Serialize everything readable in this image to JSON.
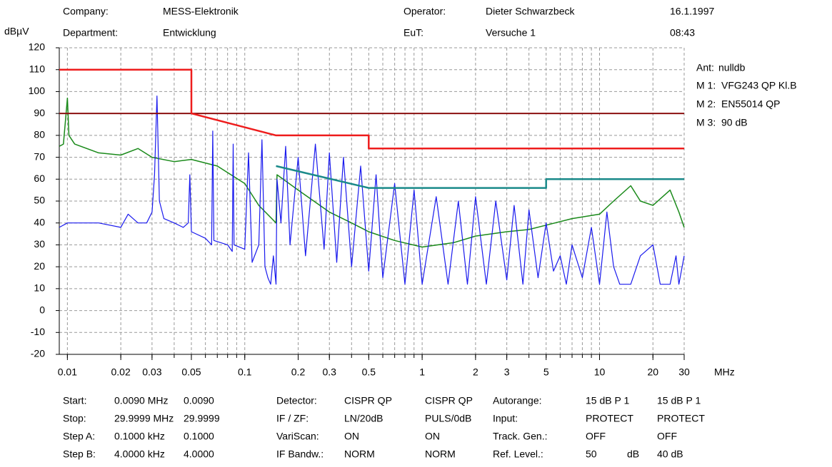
{
  "header": {
    "company_label": "Company:",
    "company": "MESS-Elektronik",
    "operator_label": "Operator:",
    "operator": "Dieter Schwarzbeck",
    "date": "16.1.1997",
    "department_label": "Department:",
    "department": "Entwicklung",
    "eut_label": "EuT:",
    "eut": "Versuche 1",
    "time": "08:43"
  },
  "chart_data": {
    "type": "line",
    "y_label": "dBµV",
    "x_label": "MHz",
    "log_x": true,
    "grid": true,
    "xlim": [
      0.009,
      30
    ],
    "ylim": [
      -20,
      120
    ],
    "xticks": [
      0.01,
      0.02,
      0.03,
      0.05,
      0.1,
      0.2,
      0.3,
      0.5,
      1,
      2,
      3,
      5,
      10,
      20,
      30
    ],
    "xminorticks": [
      0.01,
      0.02,
      0.03,
      0.04,
      0.05,
      0.06,
      0.07,
      0.08,
      0.09,
      0.1,
      0.2,
      0.3,
      0.4,
      0.5,
      0.6,
      0.7,
      0.8,
      0.9,
      1,
      2,
      3,
      4,
      5,
      6,
      7,
      8,
      9,
      10,
      20,
      30
    ],
    "yticks": [
      -20,
      -10,
      0,
      10,
      20,
      30,
      40,
      50,
      60,
      70,
      80,
      90,
      100,
      110,
      120
    ],
    "antenna": {
      "label": "Ant:",
      "value": "nulldb",
      "color": "#8b1a9b"
    },
    "series": [
      {
        "label": "M 3:",
        "name": "90 dB",
        "color": "#8b1010",
        "width": 2,
        "x": [
          0.009,
          30
        ],
        "values": [
          90,
          90
        ]
      },
      {
        "label": "M 1:",
        "name": "VFG243 QP Kl.B",
        "color": "#ee1c1c",
        "width": 2.5,
        "x": [
          0.009,
          0.05,
          0.05,
          0.15,
          0.5,
          0.5,
          30
        ],
        "values": [
          110,
          110,
          90,
          80,
          80,
          74,
          74
        ]
      },
      {
        "label": "M 2:",
        "name": "EN55014 QP",
        "color": "#1a8a8a",
        "width": 2.5,
        "x": [
          0.15,
          0.5,
          5,
          5,
          30
        ],
        "values": [
          66,
          56,
          56,
          60,
          60
        ]
      },
      {
        "color": "#1a8a1a",
        "width": 1.5,
        "x": [
          0.009,
          0.0095,
          0.01,
          0.0102,
          0.011,
          0.015,
          0.02,
          0.025,
          0.03,
          0.04,
          0.05,
          0.07,
          0.1,
          0.12,
          0.15,
          0.152,
          0.2,
          0.3,
          0.4,
          0.5,
          0.7,
          1,
          1.5,
          2,
          3,
          4,
          5,
          7,
          10,
          12,
          15,
          17,
          20,
          25,
          28,
          30
        ],
        "values": [
          75,
          76,
          97,
          80,
          76,
          72,
          71,
          74,
          70,
          68,
          69,
          66,
          58,
          48,
          40,
          62,
          55,
          45,
          40,
          36,
          32,
          29,
          31,
          34,
          36,
          37,
          39,
          42,
          44,
          50,
          57,
          50,
          48,
          55,
          45,
          38
        ]
      },
      {
        "color": "#1a1aee",
        "width": 1.2,
        "x": [
          0.009,
          0.01,
          0.015,
          0.02,
          0.022,
          0.025,
          0.028,
          0.03,
          0.031,
          0.032,
          0.033,
          0.035,
          0.04,
          0.045,
          0.048,
          0.049,
          0.05,
          0.06,
          0.065,
          0.066,
          0.067,
          0.08,
          0.085,
          0.086,
          0.087,
          0.1,
          0.105,
          0.11,
          0.12,
          0.125,
          0.13,
          0.135,
          0.14,
          0.145,
          0.15,
          0.152,
          0.16,
          0.17,
          0.18,
          0.2,
          0.22,
          0.25,
          0.28,
          0.3,
          0.33,
          0.36,
          0.4,
          0.45,
          0.5,
          0.55,
          0.6,
          0.7,
          0.8,
          0.9,
          1,
          1.2,
          1.4,
          1.6,
          1.8,
          2,
          2.3,
          2.6,
          3,
          3.3,
          3.7,
          4,
          4.5,
          5,
          5.5,
          6,
          6.5,
          7,
          8,
          9,
          10,
          11,
          12,
          13,
          15,
          17,
          20,
          22,
          25,
          27,
          28,
          30
        ],
        "values": [
          38,
          40,
          40,
          38,
          44,
          40,
          40,
          45,
          62,
          98,
          50,
          42,
          40,
          38,
          40,
          62,
          36,
          33,
          30,
          82,
          32,
          30,
          27,
          76,
          30,
          28,
          72,
          22,
          30,
          78,
          20,
          15,
          12,
          25,
          12,
          60,
          40,
          75,
          30,
          70,
          25,
          76,
          28,
          72,
          22,
          70,
          20,
          66,
          18,
          62,
          15,
          58,
          12,
          55,
          12,
          52,
          12,
          50,
          12,
          52,
          12,
          50,
          14,
          48,
          12,
          46,
          15,
          40,
          18,
          25,
          12,
          30,
          15,
          38,
          12,
          45,
          20,
          12,
          12,
          25,
          30,
          12,
          12,
          25,
          12,
          25
        ]
      }
    ]
  },
  "settings": {
    "rows": [
      {
        "cells": [
          "Start:",
          "0.0090 MHz",
          "0.0090",
          "Detector:",
          "CISPR QP",
          "CISPR QP",
          "Autorange:",
          "15 dB P 1",
          "15 dB P 1"
        ],
        "colors": [
          "#000",
          "#1a1aee",
          "#1a8a1a",
          "#000",
          "#1a1aee",
          "#1a8a1a",
          "#000",
          "#1a1aee",
          "#1a8a1a"
        ]
      },
      {
        "cells": [
          "Stop:",
          "29.9999 MHz",
          "29.9999",
          "IF / ZF:",
          "LN/20dB",
          "PULS/0dB",
          "Input:",
          "PROTECT",
          "PROTECT"
        ],
        "colors": [
          "#000",
          "#1a1aee",
          "#1a8a1a",
          "#000",
          "#1a1aee",
          "#1a8a1a",
          "#000",
          "#1a1aee",
          "#1a8a1a"
        ]
      },
      {
        "cells": [
          "Step A:",
          "0.1000 kHz",
          "0.1000",
          "VariScan:",
          "ON",
          "ON",
          "Track. Gen.:",
          "OFF",
          "OFF"
        ],
        "colors": [
          "#000",
          "#1a1aee",
          "#1a8a1a",
          "#000",
          "#1a1aee",
          "#1a8a1a",
          "#000",
          "#1a1aee",
          "#1a8a1a"
        ]
      },
      {
        "cells": [
          "Step B:",
          "4.0000 kHz",
          "4.0000",
          "IF Bandw.:",
          "NORM",
          "NORM",
          "Ref. Level.:",
          "50",
          "dB",
          "40 dB"
        ],
        "colors": [
          "#000",
          "#1a1aee",
          "#1a8a1a",
          "#000",
          "#1a1aee",
          "#1a8a1a",
          "#000",
          "#1a1aee",
          "#000",
          "#1a8a1a"
        ]
      }
    ]
  }
}
